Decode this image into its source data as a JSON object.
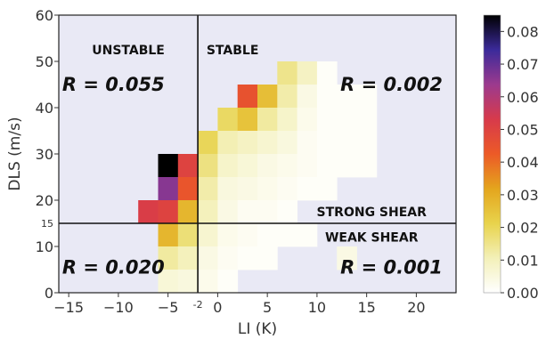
{
  "chart_data": {
    "type": "heatmap",
    "xlabel": "LI (K)",
    "ylabel": "DLS (m/s)",
    "xlim": [
      -16,
      24
    ],
    "ylim": [
      0,
      60
    ],
    "cell_size": {
      "x": 2,
      "y": 5
    },
    "x_ticks": [
      {
        "value": -15,
        "label": "−15"
      },
      {
        "value": -10,
        "label": "−10"
      },
      {
        "value": -5,
        "label": "−5"
      },
      {
        "value": 0,
        "label": "0"
      },
      {
        "value": 5,
        "label": "5"
      },
      {
        "value": 10,
        "label": "10"
      },
      {
        "value": 15,
        "label": "15"
      },
      {
        "value": 20,
        "label": "20"
      }
    ],
    "x_extra_tick": {
      "value": -2,
      "label": "-2"
    },
    "y_ticks": [
      {
        "value": 0,
        "label": "0"
      },
      {
        "value": 10,
        "label": "10"
      },
      {
        "value": 20,
        "label": "20"
      },
      {
        "value": 30,
        "label": "30"
      },
      {
        "value": 40,
        "label": "40"
      },
      {
        "value": 50,
        "label": "50"
      },
      {
        "value": 60,
        "label": "60"
      }
    ],
    "y_extra_tick": {
      "value": 15,
      "label": "15"
    },
    "threshold_lines": {
      "li": -2,
      "dls": 15
    },
    "colorbar": {
      "min": 0.0,
      "max": 0.085,
      "ticks": [
        {
          "value": 0.0,
          "label": "0.00"
        },
        {
          "value": 0.01,
          "label": "0.01"
        },
        {
          "value": 0.02,
          "label": "0.02"
        },
        {
          "value": 0.03,
          "label": "0.03"
        },
        {
          "value": 0.04,
          "label": "0.04"
        },
        {
          "value": 0.05,
          "label": "0.05"
        },
        {
          "value": 0.06,
          "label": "0.06"
        },
        {
          "value": 0.07,
          "label": "0.07"
        },
        {
          "value": 0.08,
          "label": "0.08"
        }
      ],
      "stops": [
        "#ffffff",
        "#f3f0b8",
        "#e8d34c",
        "#e4a51d",
        "#ec5a27",
        "#d73a4b",
        "#9c3a8e",
        "#3b2a9a",
        "#000000"
      ]
    },
    "cells": [
      {
        "x": -5,
        "y": 25,
        "v": 0.085
      },
      {
        "x": -3,
        "y": 25,
        "v": 0.05
      },
      {
        "x": -5,
        "y": 20,
        "v": 0.066
      },
      {
        "x": -3,
        "y": 20,
        "v": 0.044
      },
      {
        "x": -7,
        "y": 15,
        "v": 0.052
      },
      {
        "x": -5,
        "y": 15,
        "v": 0.05
      },
      {
        "x": -3,
        "y": 15,
        "v": 0.028
      },
      {
        "x": -5,
        "y": 10,
        "v": 0.028
      },
      {
        "x": -3,
        "y": 10,
        "v": 0.017
      },
      {
        "x": -5,
        "y": 5,
        "v": 0.013
      },
      {
        "x": -3,
        "y": 5,
        "v": 0.01
      },
      {
        "x": -5,
        "y": 0,
        "v": 0.006
      },
      {
        "x": -3,
        "y": 0,
        "v": 0.005
      },
      {
        "x": -1,
        "y": 30,
        "v": 0.02
      },
      {
        "x": -1,
        "y": 25,
        "v": 0.016
      },
      {
        "x": -1,
        "y": 20,
        "v": 0.012
      },
      {
        "x": -1,
        "y": 15,
        "v": 0.01
      },
      {
        "x": -1,
        "y": 10,
        "v": 0.007
      },
      {
        "x": -1,
        "y": 5,
        "v": 0.004
      },
      {
        "x": -1,
        "y": 0,
        "v": 0.003
      },
      {
        "x": 1,
        "y": 35,
        "v": 0.019
      },
      {
        "x": 1,
        "y": 30,
        "v": 0.011
      },
      {
        "x": 1,
        "y": 25,
        "v": 0.008
      },
      {
        "x": 1,
        "y": 20,
        "v": 0.005
      },
      {
        "x": 1,
        "y": 15,
        "v": 0.004
      },
      {
        "x": 1,
        "y": 10,
        "v": 0.003
      },
      {
        "x": 1,
        "y": 5,
        "v": 0.002
      },
      {
        "x": 1,
        "y": 0,
        "v": 0.001
      },
      {
        "x": 3,
        "y": 40,
        "v": 0.045
      },
      {
        "x": 3,
        "y": 35,
        "v": 0.025
      },
      {
        "x": 3,
        "y": 30,
        "v": 0.009
      },
      {
        "x": 3,
        "y": 25,
        "v": 0.006
      },
      {
        "x": 3,
        "y": 20,
        "v": 0.004
      },
      {
        "x": 3,
        "y": 15,
        "v": 0.002
      },
      {
        "x": 3,
        "y": 10,
        "v": 0.002
      },
      {
        "x": 3,
        "y": 5,
        "v": 0.001
      },
      {
        "x": 5,
        "y": 40,
        "v": 0.026
      },
      {
        "x": 5,
        "y": 35,
        "v": 0.013
      },
      {
        "x": 5,
        "y": 30,
        "v": 0.007
      },
      {
        "x": 5,
        "y": 25,
        "v": 0.004
      },
      {
        "x": 5,
        "y": 20,
        "v": 0.003
      },
      {
        "x": 5,
        "y": 15,
        "v": 0.002
      },
      {
        "x": 5,
        "y": 10,
        "v": 0.001
      },
      {
        "x": 5,
        "y": 5,
        "v": 0.001
      },
      {
        "x": 7,
        "y": 45,
        "v": 0.015
      },
      {
        "x": 7,
        "y": 40,
        "v": 0.012
      },
      {
        "x": 7,
        "y": 35,
        "v": 0.008
      },
      {
        "x": 7,
        "y": 30,
        "v": 0.005
      },
      {
        "x": 7,
        "y": 25,
        "v": 0.003
      },
      {
        "x": 7,
        "y": 20,
        "v": 0.002
      },
      {
        "x": 7,
        "y": 15,
        "v": 0.001
      },
      {
        "x": 7,
        "y": 10,
        "v": 0.001
      },
      {
        "x": 9,
        "y": 45,
        "v": 0.009
      },
      {
        "x": 9,
        "y": 40,
        "v": 0.004
      },
      {
        "x": 9,
        "y": 35,
        "v": 0.003
      },
      {
        "x": 9,
        "y": 30,
        "v": 0.002
      },
      {
        "x": 9,
        "y": 25,
        "v": 0.002
      },
      {
        "x": 9,
        "y": 20,
        "v": 0.001
      },
      {
        "x": 9,
        "y": 10,
        "v": 0.001
      },
      {
        "x": 11,
        "y": 45,
        "v": 0.001
      },
      {
        "x": 11,
        "y": 40,
        "v": 0.001
      },
      {
        "x": 11,
        "y": 35,
        "v": 0.001
      },
      {
        "x": 11,
        "y": 30,
        "v": 0.001
      },
      {
        "x": 11,
        "y": 25,
        "v": 0.001
      },
      {
        "x": 11,
        "y": 20,
        "v": 0.001
      },
      {
        "x": 13,
        "y": 40,
        "v": 0.001
      },
      {
        "x": 13,
        "y": 35,
        "v": 0.001
      },
      {
        "x": 13,
        "y": 30,
        "v": 0.001
      },
      {
        "x": 13,
        "y": 25,
        "v": 0.001
      },
      {
        "x": 13,
        "y": 5,
        "v": 0.004
      },
      {
        "x": 15,
        "y": 40,
        "v": 0.001
      },
      {
        "x": 15,
        "y": 35,
        "v": 0.001
      },
      {
        "x": 15,
        "y": 30,
        "v": 0.001
      },
      {
        "x": 15,
        "y": 25,
        "v": 0.001
      }
    ],
    "annotations": [
      {
        "text": "UNSTABLE",
        "x": -9,
        "y": 52.5,
        "style": "region"
      },
      {
        "text": "STABLE",
        "x": 1.5,
        "y": 52.5,
        "style": "region"
      },
      {
        "text": "STRONG SHEAR",
        "x": 15.5,
        "y": 17.5,
        "style": "region"
      },
      {
        "text": "WEAK SHEAR",
        "x": 15.5,
        "y": 12,
        "style": "region"
      },
      {
        "text": "R = 0.055",
        "x": -10.5,
        "y": 45,
        "style": "r"
      },
      {
        "text": "R = 0.002",
        "x": 17.5,
        "y": 45,
        "style": "r"
      },
      {
        "text": "R = 0.020",
        "x": -10.5,
        "y": 5.5,
        "style": "r"
      },
      {
        "text": "R = 0.001",
        "x": 17.5,
        "y": 5.5,
        "style": "r"
      }
    ]
  }
}
